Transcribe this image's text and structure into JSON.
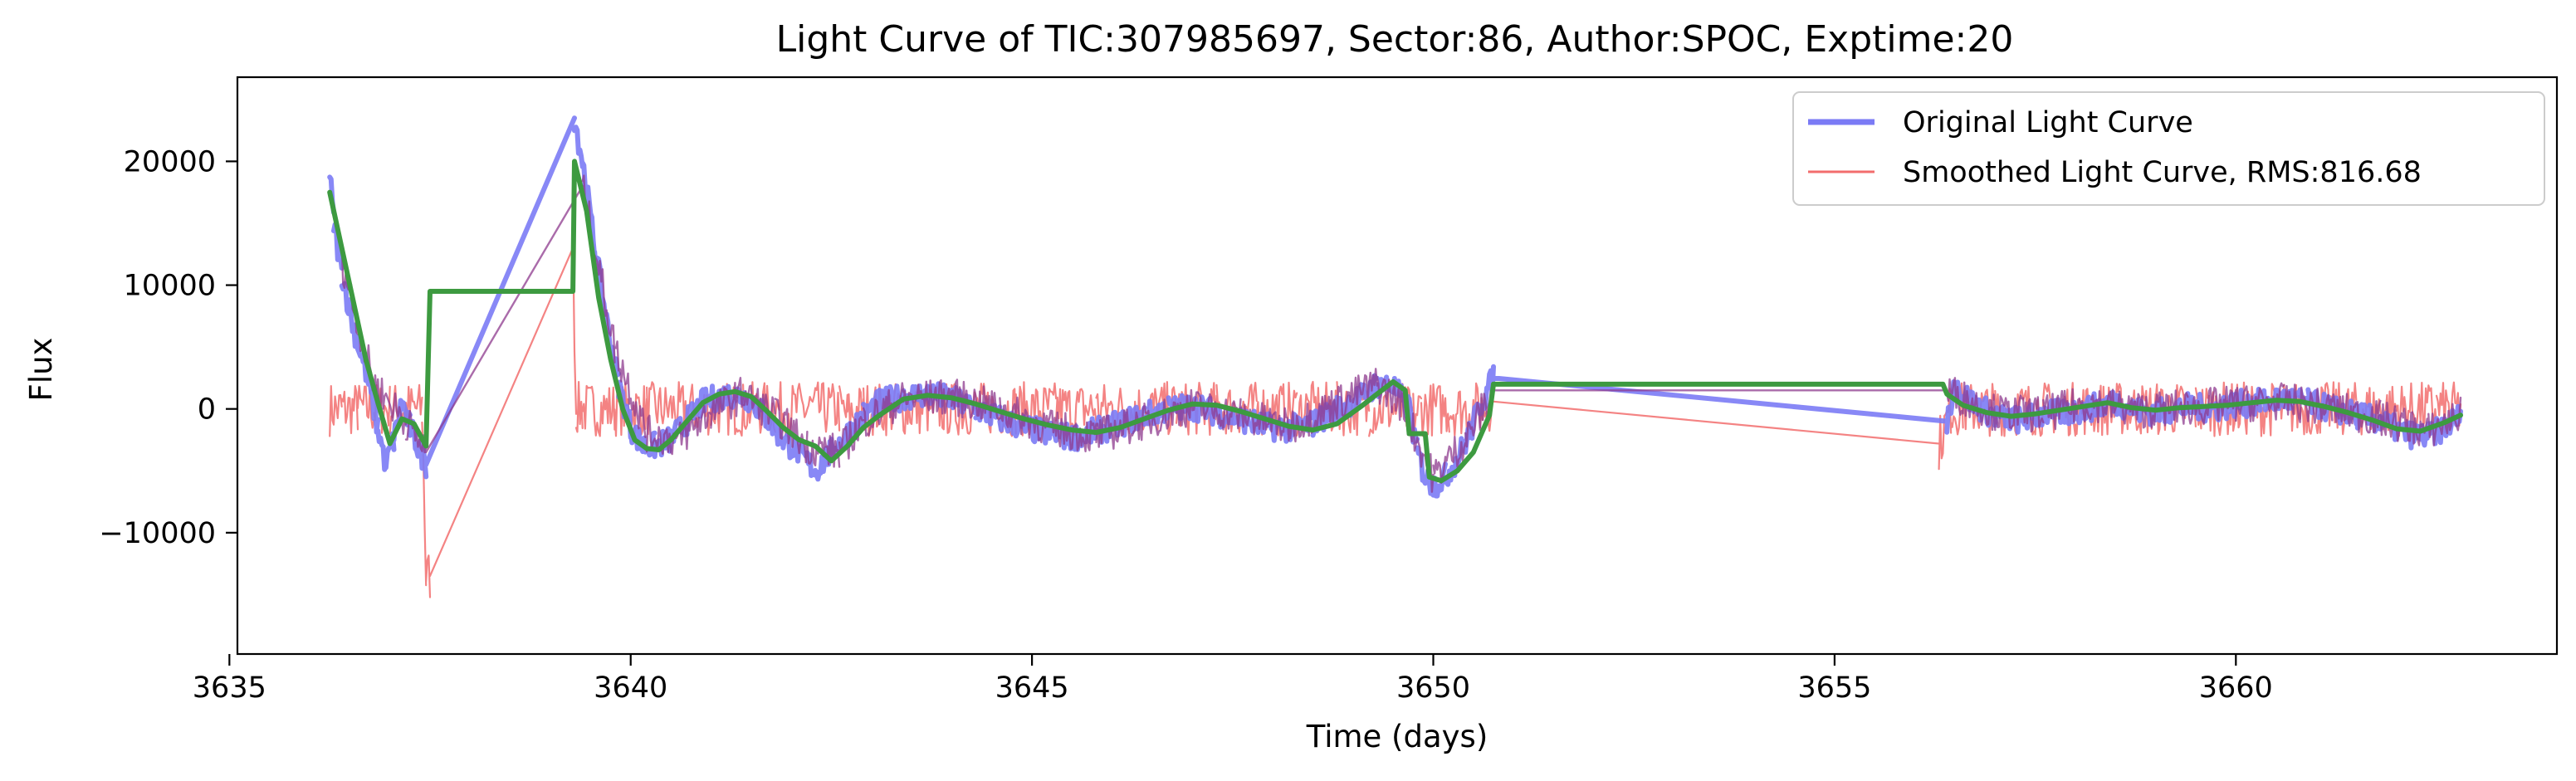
{
  "chart_data": {
    "type": "line",
    "title": "Light Curve of TIC:307985697, Sector:86, Author:SPOC, Exptime:20",
    "xlabel": "Time (days)",
    "ylabel": "Flux",
    "xlim": [
      3635.1,
      3664.0
    ],
    "ylim": [
      -19800,
      26800
    ],
    "xticks": [
      3635,
      3640,
      3645,
      3650,
      3655,
      3660
    ],
    "xtick_labels": [
      "3635",
      "3640",
      "3645",
      "3650",
      "3655",
      "3660"
    ],
    "yticks": [
      -10000,
      0,
      10000,
      20000
    ],
    "ytick_labels": [
      "−10000",
      "0",
      "10000",
      "20000"
    ],
    "grid": false,
    "legend_position": "top-right",
    "series": [
      {
        "name": "Original Light Curve",
        "color": "#7b7bf5",
        "style": "thick-noisy",
        "noise": 1100,
        "x": [
          3636.25,
          3636.3,
          3636.4,
          3636.55,
          3636.7,
          3636.85,
          3636.95,
          3637.05,
          3637.15,
          3637.25,
          3637.35,
          3637.45,
          3639.3,
          3639.4,
          3639.55,
          3639.7,
          3639.85,
          3640.0,
          3640.15,
          3640.3,
          3640.5,
          3640.7,
          3640.9,
          3641.1,
          3641.3,
          3641.5,
          3641.7,
          3641.9,
          3642.1,
          3642.3,
          3642.5,
          3642.7,
          3642.9,
          3643.1,
          3643.4,
          3643.7,
          3644.0,
          3644.3,
          3644.6,
          3644.9,
          3645.2,
          3645.5,
          3645.8,
          3646.1,
          3646.4,
          3646.7,
          3647.0,
          3647.3,
          3647.6,
          3647.9,
          3648.2,
          3648.5,
          3648.8,
          3649.1,
          3649.3,
          3649.5,
          3649.7,
          3649.8,
          3649.9,
          3650.0,
          3650.15,
          3650.3,
          3650.45,
          3650.6,
          3650.75,
          3656.4,
          3656.5,
          3656.7,
          3657.0,
          3657.3,
          3657.6,
          3657.9,
          3658.2,
          3658.5,
          3658.8,
          3659.1,
          3659.4,
          3659.7,
          3660.0,
          3660.3,
          3660.6,
          3660.9,
          3661.2,
          3661.5,
          3661.8,
          3662.1,
          3662.4,
          3662.6,
          3662.8
        ],
        "y": [
          19000,
          15000,
          11000,
          6500,
          3000,
          -1500,
          -4500,
          -2500,
          500,
          -1500,
          -3000,
          -4500,
          23500,
          20000,
          13000,
          7000,
          2000,
          -1500,
          -3000,
          -3000,
          -2500,
          -1000,
          500,
          1000,
          1200,
          800,
          -800,
          -2500,
          -3500,
          -5000,
          -3500,
          -2000,
          -500,
          500,
          1000,
          1200,
          800,
          0,
          -800,
          -1500,
          -2000,
          -2300,
          -1800,
          -1200,
          -500,
          0,
          200,
          -300,
          -800,
          -1400,
          -1600,
          -1200,
          0,
          1000,
          2000,
          1800,
          0,
          -3500,
          -5500,
          -6200,
          -5500,
          -4000,
          -2000,
          500,
          2500,
          -1000,
          2000,
          600,
          -600,
          -900,
          -400,
          -300,
          100,
          600,
          -200,
          -200,
          200,
          0,
          400,
          500,
          800,
          500,
          0,
          -500,
          -1000,
          -2000,
          -2200,
          -1500,
          -500
        ]
      },
      {
        "name": "Smoothed Light Curve, RMS:816.68",
        "color": "#f26d6d",
        "style": "thin-noisy",
        "noise": 2200,
        "x": [
          3636.25,
          3636.4,
          3636.6,
          3636.8,
          3637.0,
          3637.2,
          3637.4,
          3637.45,
          3637.5,
          3639.28,
          3639.32,
          3639.4,
          3639.8,
          3640.2,
          3640.6,
          3641.0,
          3641.4,
          3641.8,
          3642.2,
          3642.6,
          3642.7,
          3642.9,
          3643.3,
          3643.8,
          3644.3,
          3644.8,
          3645.3,
          3645.8,
          3646.3,
          3646.8,
          3647.3,
          3647.8,
          3648.3,
          3648.8,
          3649.2,
          3649.6,
          3649.75,
          3649.85,
          3650.2,
          3650.6,
          3650.75,
          3656.3,
          3656.45,
          3656.6,
          3657.0,
          3657.5,
          3658.0,
          3658.5,
          3659.0,
          3659.5,
          3660.0,
          3660.5,
          3661.0,
          3661.5,
          3662.0,
          3662.5,
          3662.8
        ],
        "y": [
          0,
          0,
          0,
          0,
          0,
          0,
          0,
          -13500,
          -13500,
          13000,
          0,
          0,
          0,
          0,
          0,
          0,
          0,
          0,
          0,
          0,
          -500,
          0,
          0,
          0,
          0,
          0,
          0,
          0,
          0,
          0,
          0,
          0,
          0,
          0,
          0,
          0,
          -500,
          0,
          0,
          0,
          600,
          -2800,
          0,
          0,
          0,
          0,
          0,
          0,
          0,
          0,
          0,
          0,
          0,
          0,
          0,
          0,
          0
        ]
      },
      {
        "name": "",
        "color": "#8e3a8e",
        "style": "band",
        "noise": 1500,
        "x": [
          3636.4,
          3636.8,
          3637.2,
          3637.45,
          3639.4,
          3639.8,
          3640.2,
          3640.6,
          3641.0,
          3641.4,
          3641.8,
          3642.2,
          3642.6,
          3642.9,
          3643.4,
          3644.0,
          3644.6,
          3645.2,
          3645.8,
          3646.4,
          3647.0,
          3647.6,
          3648.2,
          3648.8,
          3649.3,
          3649.6,
          3650.0,
          3650.4,
          3650.75,
          3656.4,
          3657.0,
          3657.6,
          3658.2,
          3658.8,
          3659.4,
          3660.0,
          3660.6,
          3661.2,
          3661.8,
          3662.4,
          3662.8
        ],
        "y": [
          12000,
          2000,
          -1000,
          -3500,
          18000,
          5000,
          -2000,
          -2500,
          -200,
          1200,
          -500,
          -3000,
          -3500,
          -1000,
          800,
          1000,
          0,
          -1500,
          -2200,
          -1000,
          200,
          -500,
          -1500,
          500,
          2000,
          500,
          -5500,
          -2500,
          1500,
          1500,
          -300,
          -400,
          500,
          -100,
          100,
          400,
          600,
          0,
          -800,
          -1800,
          -500
        ]
      },
      {
        "name": "",
        "color": "#3d9a40",
        "style": "smooth",
        "noise": 0,
        "x": [
          3636.25,
          3636.4,
          3636.55,
          3636.7,
          3636.85,
          3637.0,
          3637.15,
          3637.3,
          3637.45,
          3637.5,
          3639.28,
          3639.3,
          3639.45,
          3639.6,
          3639.75,
          3639.9,
          3640.05,
          3640.2,
          3640.35,
          3640.5,
          3640.7,
          3640.9,
          3641.1,
          3641.3,
          3641.5,
          3641.7,
          3641.9,
          3642.1,
          3642.3,
          3642.5,
          3642.7,
          3642.9,
          3643.1,
          3643.4,
          3643.7,
          3644.0,
          3644.3,
          3644.6,
          3644.9,
          3645.2,
          3645.5,
          3645.8,
          3646.1,
          3646.4,
          3646.7,
          3647.0,
          3647.3,
          3647.6,
          3647.9,
          3648.2,
          3648.5,
          3648.8,
          3649.1,
          3649.3,
          3649.5,
          3649.65,
          3649.7,
          3649.9,
          3649.95,
          3650.1,
          3650.3,
          3650.5,
          3650.7,
          3650.75,
          3656.35,
          3656.4,
          3656.6,
          3656.9,
          3657.2,
          3657.5,
          3657.8,
          3658.1,
          3658.4,
          3658.7,
          3659.0,
          3659.3,
          3659.6,
          3659.9,
          3660.2,
          3660.5,
          3660.8,
          3661.1,
          3661.4,
          3661.7,
          3662.0,
          3662.3,
          3662.6,
          3662.8
        ],
        "y": [
          17500,
          13000,
          8500,
          4000,
          500,
          -2800,
          -800,
          -1200,
          -3000,
          9500,
          9500,
          20000,
          16000,
          9000,
          4000,
          0,
          -2500,
          -3200,
          -3300,
          -2500,
          -1000,
          500,
          1200,
          1400,
          1000,
          -200,
          -1500,
          -2500,
          -3000,
          -4200,
          -3000,
          -1500,
          -500,
          800,
          1100,
          900,
          400,
          -200,
          -800,
          -1300,
          -1700,
          -1900,
          -1500,
          -800,
          -100,
          400,
          300,
          -200,
          -800,
          -1400,
          -1700,
          -1200,
          200,
          1200,
          2200,
          1500,
          -2000,
          -2000,
          -5500,
          -5800,
          -5000,
          -3500,
          -500,
          2000,
          2000,
          1200,
          300,
          -300,
          -600,
          -400,
          -100,
          200,
          500,
          100,
          -100,
          100,
          200,
          300,
          500,
          700,
          600,
          200,
          -300,
          -900,
          -1600,
          -1800,
          -1100,
          -500
        ]
      }
    ]
  }
}
